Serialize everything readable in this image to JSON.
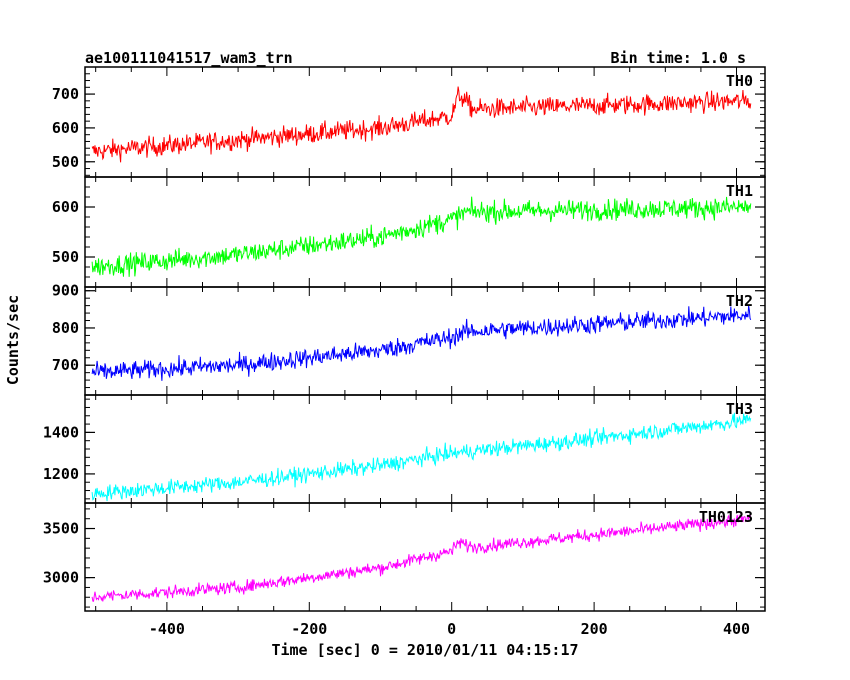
{
  "header": {
    "title": "ae100111041517_wam3_trn",
    "bin_time": "Bin time: 1.0 s"
  },
  "chart_data": {
    "type": "line",
    "xlabel": "Time [sec] 0 = 2010/01/11 04:15:17",
    "ylabel": "Counts/sec",
    "xlim": [
      -515,
      440
    ],
    "xticks": [
      -400,
      -200,
      0,
      200,
      400
    ],
    "x_start": -505,
    "x_end": 420,
    "panels": [
      {
        "name": "TH0",
        "color": "#ff0000",
        "ylim": [
          455,
          780
        ],
        "yticks": [
          500,
          600,
          700
        ],
        "trend": [
          [
            -505,
            530
          ],
          [
            -300,
            565
          ],
          [
            -100,
            600
          ],
          [
            0,
            635
          ],
          [
            10,
            700
          ],
          [
            30,
            655
          ],
          [
            420,
            680
          ]
        ],
        "noise": 35
      },
      {
        "name": "TH1",
        "color": "#00ff00",
        "ylim": [
          440,
          660
        ],
        "yticks": [
          500,
          600
        ],
        "trend": [
          [
            -505,
            480
          ],
          [
            -300,
            505
          ],
          [
            -100,
            540
          ],
          [
            0,
            575
          ],
          [
            20,
            590
          ],
          [
            420,
            600
          ]
        ],
        "noise": 25
      },
      {
        "name": "TH2",
        "color": "#0000ff",
        "ylim": [
          620,
          910
        ],
        "yticks": [
          700,
          800,
          900
        ],
        "trend": [
          [
            -505,
            680
          ],
          [
            -300,
            700
          ],
          [
            -100,
            740
          ],
          [
            0,
            775
          ],
          [
            20,
            790
          ],
          [
            420,
            835
          ]
        ],
        "noise": 30
      },
      {
        "name": "TH3",
        "color": "#00ffff",
        "ylim": [
          1060,
          1580
        ],
        "yticks": [
          1200,
          1400
        ],
        "trend": [
          [
            -505,
            1105
          ],
          [
            -300,
            1160
          ],
          [
            -100,
            1240
          ],
          [
            0,
            1300
          ],
          [
            200,
            1370
          ],
          [
            420,
            1460
          ]
        ],
        "noise": 45
      },
      {
        "name": "TH0123",
        "color": "#ff00ff",
        "ylim": [
          2660,
          3760
        ],
        "yticks": [
          3000,
          3500
        ],
        "trend": [
          [
            -505,
            2800
          ],
          [
            -300,
            2900
          ],
          [
            -100,
            3100
          ],
          [
            0,
            3270
          ],
          [
            10,
            3360
          ],
          [
            30,
            3310
          ],
          [
            420,
            3600
          ]
        ],
        "noise": 75
      }
    ]
  }
}
